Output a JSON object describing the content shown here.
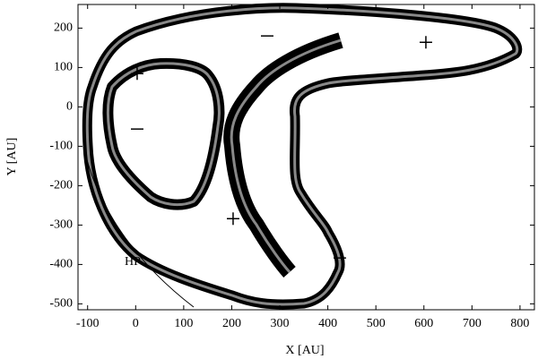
{
  "chart_data": {
    "type": "plot",
    "xlabel": "X [AU]",
    "ylabel": "Y [AU]",
    "xlim": [
      -120,
      830
    ],
    "ylim": [
      -515,
      260
    ],
    "xticks": [
      -100,
      0,
      100,
      200,
      300,
      400,
      500,
      600,
      700,
      800
    ],
    "yticks": [
      -500,
      -400,
      -300,
      -200,
      -100,
      0,
      100,
      200
    ],
    "annotations": [
      "+",
      "−",
      "−",
      "+",
      "+",
      "−",
      "HP"
    ]
  }
}
